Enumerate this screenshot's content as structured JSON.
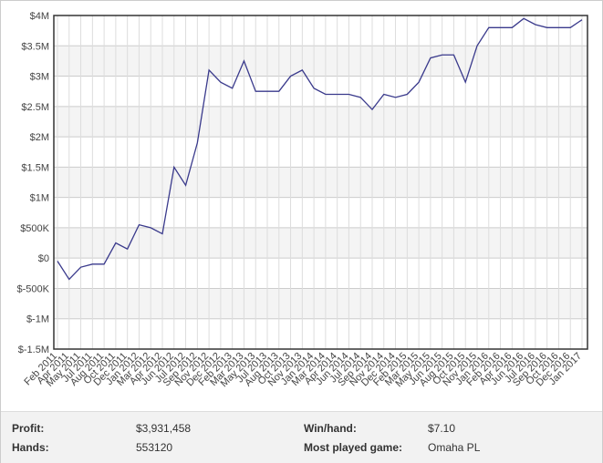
{
  "chart_data": {
    "type": "line",
    "categories": [
      "Feb 2011",
      "Apr 2011",
      "May 2011",
      "Jul 2011",
      "Aug 2011",
      "Oct 2011",
      "Dec 2011",
      "Jan 2012",
      "Mar 2012",
      "Apr 2012",
      "Jun 2012",
      "Jul 2012",
      "Sep 2012",
      "Nov 2012",
      "Dec 2012",
      "Feb 2013",
      "Mar 2013",
      "May 2013",
      "Jul 2013",
      "Aug 2013",
      "Oct 2013",
      "Nov 2013",
      "Jan 2014",
      "Mar 2014",
      "Apr 2014",
      "Jun 2014",
      "Jul 2014",
      "Sep 2014",
      "Nov 2014",
      "Dec 2014",
      "Feb 2015",
      "Mar 2015",
      "May 2015",
      "Jun 2015",
      "Aug 2015",
      "Oct 2015",
      "Nov 2015",
      "Jan 2016",
      "Feb 2016",
      "Apr 2016",
      "Jun 2016",
      "Jul 2016",
      "Sep 2016",
      "Oct 2016",
      "Dec 2016",
      "Jan 2017"
    ],
    "series": [
      {
        "color": "#3a3a8c",
        "values": [
          -50000,
          -350000,
          -150000,
          -100000,
          -100000,
          250000,
          150000,
          550000,
          500000,
          400000,
          1500000,
          1200000,
          1900000,
          3100000,
          2900000,
          2800000,
          3250000,
          2750000,
          2750000,
          2750000,
          3000000,
          3100000,
          2800000,
          2700000,
          2700000,
          2700000,
          2650000,
          2450000,
          2700000,
          2650000,
          2700000,
          2900000,
          3300000,
          3350000,
          3350000,
          2900000,
          3500000,
          3800000,
          3800000,
          3800000,
          3950000,
          3850000,
          3800000,
          3800000,
          3800000,
          3930000
        ]
      }
    ],
    "ylim": [
      -1500000,
      4000000
    ],
    "yticks": [
      {
        "value": -1500000,
        "label": "$-1.5M"
      },
      {
        "value": -1000000,
        "label": "$-1M"
      },
      {
        "value": -500000,
        "label": "$-500K"
      },
      {
        "value": 0,
        "label": "$0"
      },
      {
        "value": 500000,
        "label": "$500K"
      },
      {
        "value": 1000000,
        "label": "$1M"
      },
      {
        "value": 1500000,
        "label": "$1.5M"
      },
      {
        "value": 2000000,
        "label": "$2M"
      },
      {
        "value": 2500000,
        "label": "$2.5M"
      },
      {
        "value": 3000000,
        "label": "$3M"
      },
      {
        "value": 3500000,
        "label": "$3.5M"
      },
      {
        "value": 4000000,
        "label": "$4M"
      }
    ],
    "grid": true
  },
  "stats": {
    "rows": [
      [
        "Profit:",
        "$3,931,458",
        "Win/hand:",
        "$7.10"
      ],
      [
        "Hands:",
        "553120",
        "Most played game:",
        "Omaha PL"
      ]
    ]
  }
}
